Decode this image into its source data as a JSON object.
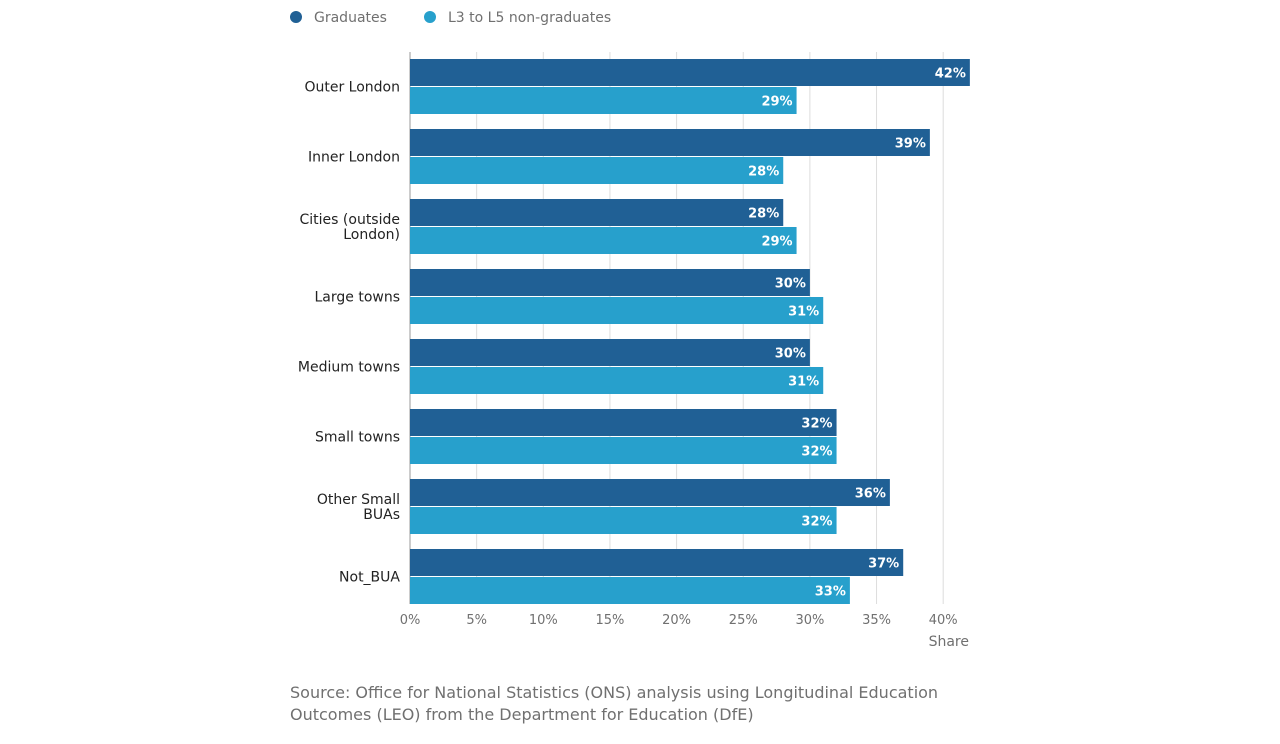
{
  "chart_data": {
    "type": "bar",
    "orientation": "horizontal",
    "categories": [
      [
        "Outer London"
      ],
      [
        "Inner London"
      ],
      [
        "Cities (outside",
        "London)"
      ],
      [
        "Large towns"
      ],
      [
        "Medium towns"
      ],
      [
        "Small towns"
      ],
      [
        "Other Small",
        "BUAs"
      ],
      [
        "Not_BUA"
      ]
    ],
    "series": [
      {
        "name": "Graduates",
        "color": "#206095",
        "values": [
          42,
          39,
          28,
          30,
          30,
          32,
          36,
          37
        ]
      },
      {
        "name": "L3 to L5 non-graduates",
        "color": "#27a0cc",
        "values": [
          29,
          28,
          29,
          31,
          31,
          32,
          32,
          33
        ]
      }
    ],
    "xlabel": "Share",
    "xlim": [
      0,
      40
    ],
    "xticks": [
      0,
      5,
      10,
      15,
      20,
      25,
      30,
      35,
      40
    ],
    "tick_suffix": "%",
    "grid": true,
    "legend_position": "top-left",
    "data_labels": true
  },
  "source": "Source: Office for National Statistics (ONS) analysis using Longitudinal Education Outcomes (LEO) from the Department for Education (DfE)"
}
